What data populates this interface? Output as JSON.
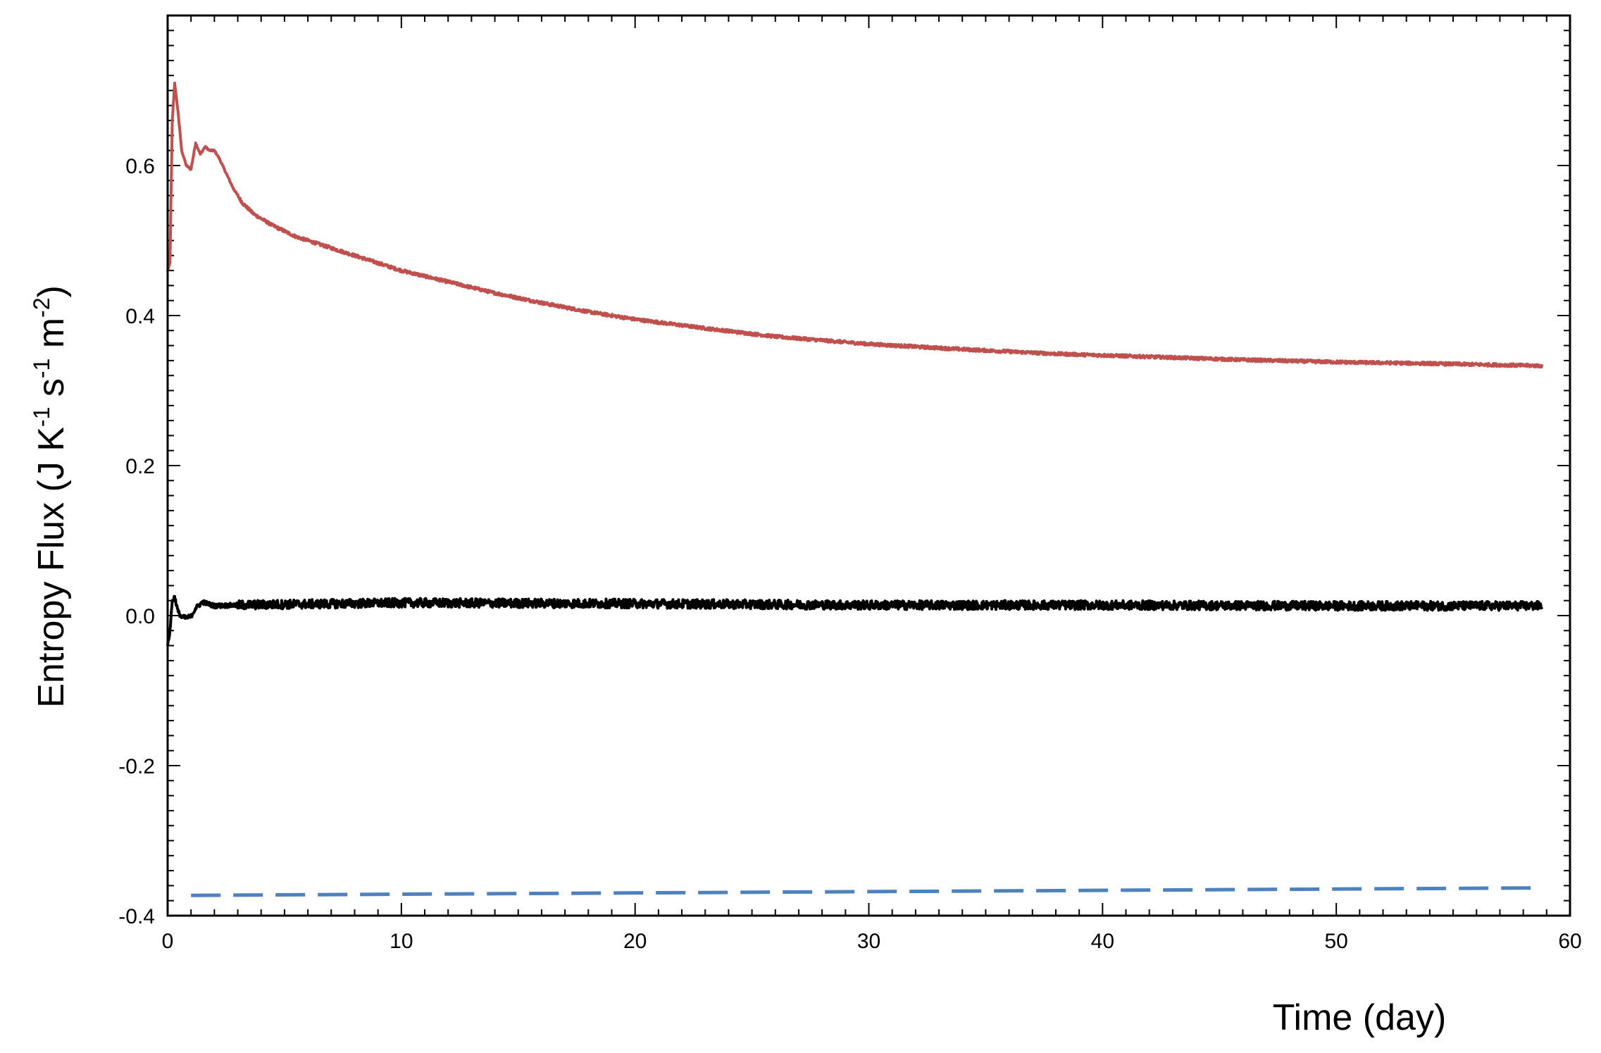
{
  "chart_data": {
    "type": "line",
    "xlabel": "Time (day)",
    "ylabel": {
      "prefix": "Entropy Flux   (J K",
      "sup1": "-1",
      "mid1": " s",
      "sup2": "-1",
      "mid2": " m",
      "sup3": "-2",
      "suffix": ")"
    },
    "xlim": [
      0,
      60
    ],
    "ylim": [
      -0.4,
      0.8
    ],
    "x_ticks": [
      {
        "value": 0,
        "label": "0"
      },
      {
        "value": 10,
        "label": "10"
      },
      {
        "value": 20,
        "label": "20"
      },
      {
        "value": 30,
        "label": "30"
      },
      {
        "value": 40,
        "label": "40"
      },
      {
        "value": 50,
        "label": "50"
      },
      {
        "value": 60,
        "label": "60"
      }
    ],
    "y_ticks": [
      {
        "value": -0.4,
        "label": "-0.4"
      },
      {
        "value": -0.2,
        "label": "-0.2"
      },
      {
        "value": 0.0,
        "label": "0.0"
      },
      {
        "value": 0.2,
        "label": "0.2"
      },
      {
        "value": 0.4,
        "label": "0.4"
      },
      {
        "value": 0.6,
        "label": "0.6"
      }
    ],
    "grid": false,
    "legend": "none",
    "series": [
      {
        "color": "#c0504d",
        "style": "solid",
        "x": [
          0,
          0.1,
          0.2,
          0.3,
          0.45,
          0.6,
          0.8,
          1.0,
          1.2,
          1.4,
          1.6,
          1.8,
          2.0,
          2.2,
          2.5,
          2.8,
          3.2,
          3.7,
          4.5,
          5.5,
          7,
          8.5,
          10,
          12,
          14,
          16,
          18,
          20,
          23,
          26,
          30,
          34,
          38,
          42,
          46,
          50,
          54,
          58.8
        ],
        "y": [
          0.46,
          0.47,
          0.66,
          0.71,
          0.67,
          0.62,
          0.6,
          0.595,
          0.63,
          0.615,
          0.625,
          0.62,
          0.62,
          0.61,
          0.59,
          0.57,
          0.55,
          0.535,
          0.52,
          0.505,
          0.49,
          0.475,
          0.46,
          0.445,
          0.43,
          0.417,
          0.405,
          0.395,
          0.383,
          0.372,
          0.362,
          0.355,
          0.349,
          0.345,
          0.341,
          0.338,
          0.336,
          0.333
        ],
        "noise": 0.002
      },
      {
        "color": "#000000",
        "style": "solid",
        "x": [
          0,
          0.1,
          0.2,
          0.3,
          0.45,
          0.6,
          0.8,
          1.0,
          1.2,
          1.5,
          2.0,
          3,
          5,
          10,
          20,
          30,
          40,
          50,
          58.8
        ],
        "y": [
          -0.04,
          -0.02,
          0.02,
          0.025,
          0.005,
          -0.002,
          -0.003,
          -0.001,
          0.01,
          0.018,
          0.013,
          0.014,
          0.015,
          0.017,
          0.016,
          0.014,
          0.014,
          0.013,
          0.013
        ],
        "noise": 0.006
      },
      {
        "color": "#4f81bd",
        "style": "dashed",
        "x": [
          1,
          58.8
        ],
        "y": [
          -0.373,
          -0.363
        ],
        "noise": 0
      }
    ]
  }
}
